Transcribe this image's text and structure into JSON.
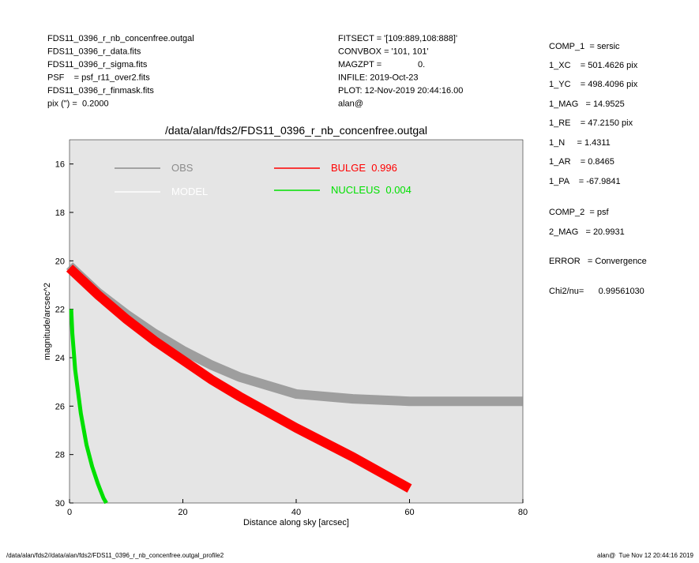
{
  "header": {
    "left": [
      "FDS11_0396_r_nb_concenfree.outgal",
      "FDS11_0396_r_data.fits",
      "FDS11_0396_r_sigma.fits",
      "PSF    = psf_r11_over2.fits",
      "FDS11_0396_r_finmask.fits",
      "pix (\") =  0.2000"
    ],
    "middle": [
      "FITSECT = '[109:889,108:888]'",
      "CONVBOX = '101, 101'",
      "MAGZPT =               0.",
      "INFILE: 2019-Oct-23",
      "PLOT: 12-Nov-2019 20:44:16.00",
      "alan@"
    ],
    "params": [
      "COMP_1  = sersic",
      "1_XC    = 501.4626 pix",
      "1_YC    = 498.4096 pix",
      "1_MAG   = 14.9525",
      "1_RE    = 47.2150 pix",
      "1_N     = 1.4311",
      "1_AR    = 0.8465",
      "1_PA    = -67.9841",
      "COMP_2  = psf",
      "2_MAG   = 20.9931",
      "ERROR   = Convergence",
      "Chi2/nu=      0.99561030"
    ]
  },
  "chart_data": {
    "type": "line",
    "title": "/data/alan/fds2/FDS11_0396_r_nb_concenfree.outgal",
    "x_label": "Distance along sky [arcsec]",
    "y_label": "magnitude/arcsec^2",
    "xlim": [
      0,
      80
    ],
    "xticks": [
      0,
      20,
      40,
      60,
      80
    ],
    "ylim": [
      30,
      15
    ],
    "yticks": [
      16,
      18,
      20,
      22,
      24,
      26,
      28,
      30
    ],
    "series": [
      {
        "name": "OBS",
        "color": "#8c8c8c",
        "x": [
          0,
          5,
          10,
          15,
          20,
          25,
          30,
          40,
          50,
          60,
          70,
          80
        ],
        "values": [
          20.2,
          21.3,
          22.2,
          23.0,
          23.7,
          24.3,
          24.8,
          25.5,
          25.7,
          25.8,
          25.8,
          25.8
        ]
      },
      {
        "name": "MODEL",
        "color": "#ffffff",
        "x": [
          0,
          5,
          10,
          15,
          20,
          25,
          30,
          40,
          50,
          60
        ],
        "values": [
          20.3,
          21.4,
          22.4,
          23.3,
          24.1,
          24.9,
          25.6,
          26.9,
          28.1,
          29.4
        ]
      },
      {
        "name": "BULGE  0.996",
        "color": "#ff0000",
        "x": [
          0,
          5,
          10,
          15,
          20,
          25,
          30,
          40,
          50,
          60
        ],
        "values": [
          20.3,
          21.4,
          22.4,
          23.3,
          24.1,
          24.9,
          25.6,
          26.9,
          28.1,
          29.4
        ]
      },
      {
        "name": "NUCLEUS  0.004",
        "color": "#00e000",
        "x": [
          0.3,
          0.5,
          1,
          2,
          3,
          4,
          5,
          6,
          6.5
        ],
        "values": [
          22,
          23,
          24.5,
          26.3,
          27.6,
          28.5,
          29.2,
          29.8,
          30
        ]
      }
    ]
  },
  "footer": {
    "left": "/data/alan/fds2//data/alan/fds2/FDS11_0396_r_nb_concenfree.outgal_profile2",
    "right": "alan@  Tue Nov 12 20:44:16 2019"
  }
}
